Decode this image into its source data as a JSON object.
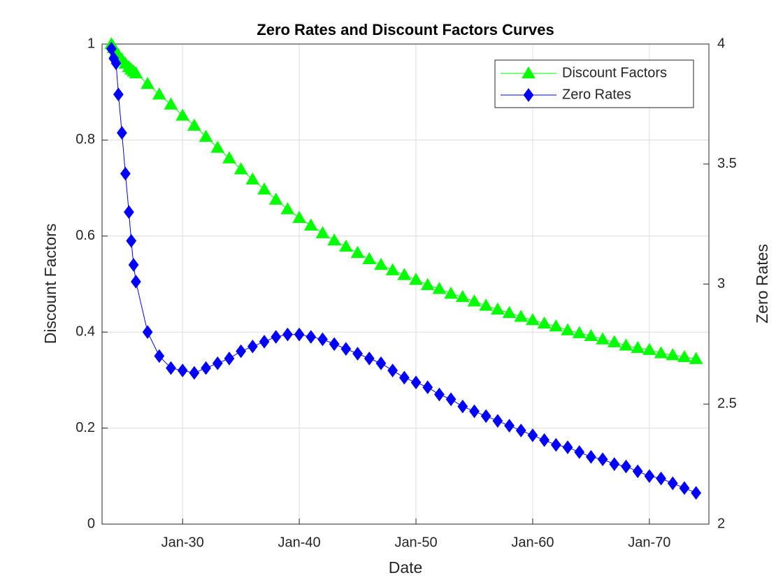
{
  "chart_data": {
    "type": "line",
    "title": "Zero Rates and Discount Factors Curves",
    "xlabel": "Date",
    "ylabel": "Discount Factors",
    "y2label": "Zero Rates",
    "x": [
      2023.9,
      2024.1,
      2024.3,
      2024.5,
      2024.8,
      2025.1,
      2025.4,
      2025.6,
      2025.8,
      2026.0,
      2027,
      2028,
      2029,
      2030,
      2031,
      2032,
      2033,
      2034,
      2035,
      2036,
      2037,
      2038,
      2039,
      2040,
      2041,
      2042,
      2043,
      2044,
      2045,
      2046,
      2047,
      2048,
      2049,
      2050,
      2051,
      2052,
      2053,
      2054,
      2055,
      2056,
      2057,
      2058,
      2059,
      2060,
      2061,
      2062,
      2063,
      2064,
      2065,
      2066,
      2067,
      2068,
      2069,
      2070,
      2071,
      2072,
      2073,
      2074
    ],
    "series": [
      {
        "name": "Discount Factors",
        "color": "#00ff00",
        "marker": "triangle",
        "axis": "y",
        "values": [
          1.0,
          0.992,
          0.984,
          0.977,
          0.968,
          0.959,
          0.952,
          0.947,
          0.943,
          0.939,
          0.917,
          0.895,
          0.874,
          0.851,
          0.83,
          0.807,
          0.784,
          0.762,
          0.739,
          0.718,
          0.697,
          0.676,
          0.656,
          0.638,
          0.622,
          0.606,
          0.591,
          0.578,
          0.565,
          0.552,
          0.54,
          0.529,
          0.519,
          0.509,
          0.498,
          0.49,
          0.48,
          0.473,
          0.464,
          0.455,
          0.447,
          0.44,
          0.432,
          0.425,
          0.418,
          0.412,
          0.404,
          0.398,
          0.392,
          0.385,
          0.379,
          0.372,
          0.367,
          0.363,
          0.356,
          0.352,
          0.348,
          0.344
        ]
      },
      {
        "name": "Zero Rates",
        "color": "#0000ff",
        "marker": "diamond",
        "axis": "y2",
        "values": [
          3.98,
          3.94,
          3.92,
          3.79,
          3.63,
          3.46,
          3.3,
          3.18,
          3.08,
          3.01,
          2.8,
          2.7,
          2.65,
          2.64,
          2.63,
          2.65,
          2.67,
          2.69,
          2.72,
          2.74,
          2.76,
          2.78,
          2.79,
          2.79,
          2.78,
          2.77,
          2.75,
          2.73,
          2.71,
          2.69,
          2.67,
          2.64,
          2.61,
          2.59,
          2.57,
          2.54,
          2.52,
          2.49,
          2.47,
          2.45,
          2.43,
          2.41,
          2.39,
          2.37,
          2.35,
          2.33,
          2.32,
          2.3,
          2.28,
          2.27,
          2.25,
          2.24,
          2.22,
          2.2,
          2.19,
          2.17,
          2.15,
          2.13
        ]
      }
    ],
    "xlim": [
      2023.1,
      2075.1
    ],
    "xticks": [
      {
        "value": 2030,
        "label": "Jan-30"
      },
      {
        "value": 2040,
        "label": "Jan-40"
      },
      {
        "value": 2050,
        "label": "Jan-50"
      },
      {
        "value": 2060,
        "label": "Jan-60"
      },
      {
        "value": 2070,
        "label": "Jan-70"
      }
    ],
    "ylim": [
      0,
      1
    ],
    "yticks": [
      0,
      0.2,
      0.4,
      0.6,
      0.8,
      1
    ],
    "y2lim": [
      2,
      4
    ],
    "y2ticks": [
      2,
      2.5,
      3,
      3.5,
      4
    ],
    "grid": true,
    "legend": "northeast"
  }
}
